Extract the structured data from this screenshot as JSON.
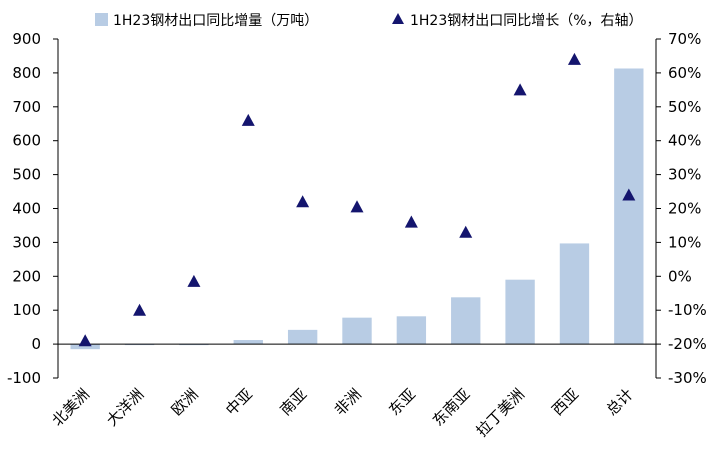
{
  "chart_data": {
    "type": "bar",
    "categories": [
      "北美洲",
      "大洋洲",
      "欧洲",
      "中亚",
      "南亚",
      "非洲",
      "东亚",
      "东南亚",
      "拉丁美洲",
      "西亚",
      "总计"
    ],
    "series": [
      {
        "name": "1H23钢材出口同比增量（万吨）",
        "type": "bar",
        "axis": "left",
        "color": "#b8cce4",
        "values": [
          -15,
          -2,
          -3,
          12,
          42,
          78,
          82,
          138,
          190,
          297,
          813
        ]
      },
      {
        "name": "1H23钢材出口同比增长（%，右轴）",
        "type": "scatter",
        "marker": "triangle",
        "axis": "right",
        "color": "#14156e",
        "values": [
          -19,
          -10,
          -1.5,
          46,
          22,
          20.5,
          16,
          13,
          55,
          64,
          24
        ]
      }
    ],
    "y_left": {
      "ylim": [
        -100,
        900
      ],
      "ticks": [
        "-100",
        "0",
        "100",
        "200",
        "300",
        "400",
        "500",
        "600",
        "700",
        "800",
        "900"
      ]
    },
    "y_right": {
      "ylim": [
        -30,
        70
      ],
      "ticks": [
        "-30%",
        "-20%",
        "-10%",
        "0%",
        "10%",
        "20%",
        "30%",
        "40%",
        "50%",
        "60%",
        "70%"
      ]
    },
    "legend_position": "top",
    "grid": false
  }
}
